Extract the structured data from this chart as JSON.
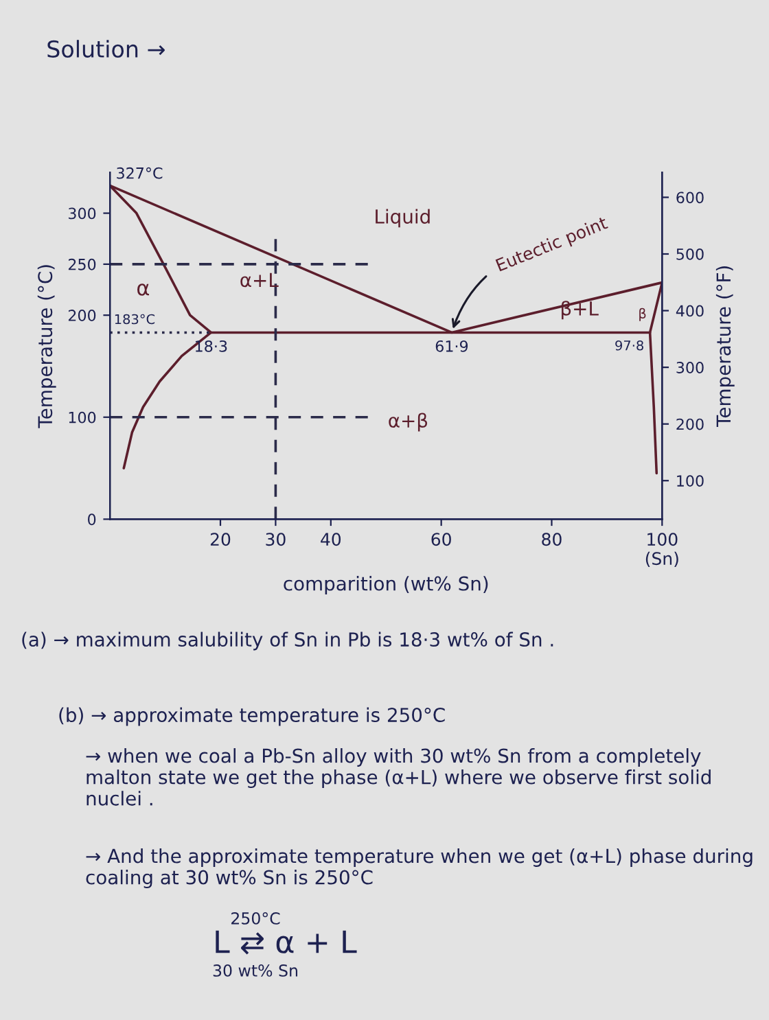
{
  "chart_data": {
    "type": "line",
    "title": "Solution →",
    "xlabel": "comparition (wt% Sn)",
    "ylabel": "Temperature (°C)",
    "y2label": "Temperature (°F)",
    "xlim": [
      0,
      100
    ],
    "xticks": [
      20,
      30,
      40,
      60,
      80,
      {
        "value": 100,
        "label": "100\n(Sn)"
      }
    ],
    "ylim": [
      0,
      340
    ],
    "yticks": [
      0,
      100,
      200,
      250,
      300
    ],
    "y2lim": [
      32,
      644
    ],
    "y2ticks": [
      100,
      200,
      300,
      400,
      500,
      600
    ],
    "grid": false,
    "series": [
      {
        "color": "#5c1e2c",
        "x": [
          0,
          61.9,
          100
        ],
        "values": [
          327,
          183,
          232
        ]
      },
      {
        "color": "#5c1e2c",
        "x": [
          0,
          4.8,
          9.7,
          14.5,
          18.3,
          13,
          9,
          6,
          4,
          2.5
        ],
        "values": [
          327,
          300,
          250,
          200,
          183,
          160,
          135,
          110,
          85,
          50
        ]
      },
      {
        "color": "#5c1e2c",
        "x": [
          18.3,
          97.8
        ],
        "values": [
          183,
          183
        ]
      },
      {
        "color": "#5c1e2c",
        "x": [
          100,
          97.8,
          98.5,
          99
        ],
        "values": [
          232,
          183,
          110,
          45
        ]
      },
      {
        "color": "#2b2b4a",
        "line_style": "dashed",
        "x": [
          30,
          30
        ],
        "values": [
          0,
          277
        ]
      },
      {
        "color": "#2b2b4a",
        "line_style": "dashed",
        "x": [
          0,
          47
        ],
        "values": [
          250,
          250
        ]
      },
      {
        "color": "#2b2b4a",
        "line_style": "dashed",
        "x": [
          0,
          47
        ],
        "values": [
          100,
          100
        ]
      },
      {
        "color": "#2b2b4a",
        "line_style": "dotted",
        "x": [
          0,
          18.3
        ],
        "values": [
          183,
          183
        ]
      }
    ],
    "annotations": [
      {
        "text": "327°C",
        "x": 0,
        "y": 327
      },
      {
        "text": "183°C",
        "x": 0,
        "y": 183
      },
      {
        "text": "18·3",
        "x": 18.3,
        "y": 183
      },
      {
        "text": "61·9",
        "x": 61.9,
        "y": 183
      },
      {
        "text": "97·8",
        "x": 97.8,
        "y": 183
      },
      {
        "text": "Eutectic point",
        "x": 61.9,
        "y": 183
      },
      "Liquid",
      "α",
      "α+L",
      "β+L",
      "β",
      "α+β",
      "(a) → maximum salubility of Sn in Pb is 18·3 wt% of Sn .",
      "(b) → approximate temperature is 250°C",
      "→ when we coal a Pb-Sn alloy with 30 wt% Sn from a completely malton state we get the phase (α+L) where we observe first solid nuclei .",
      "→ And the approximate temperature when we get (α+L) phase during coaling at 30 wt% Sn is 250°C",
      "L ⇄ α + L",
      "250°C",
      "30 wt% Sn"
    ]
  }
}
